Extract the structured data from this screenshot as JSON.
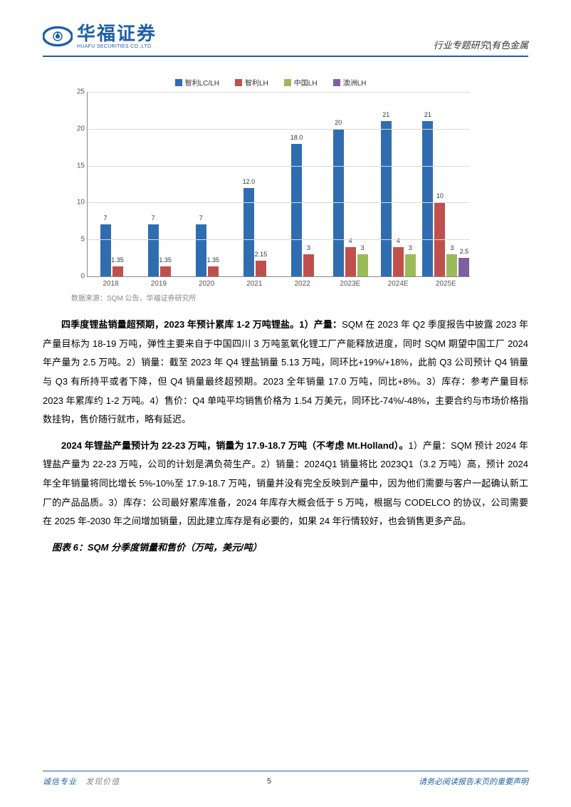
{
  "header": {
    "logo_cn": "华福证券",
    "logo_en": "HUAFU SECURITIES CO.,LTD.",
    "right": "行业专题研究|有色金属"
  },
  "chart": {
    "type": "bar",
    "ylim": [
      0,
      25
    ],
    "ytick_step": 5,
    "grid_color": "#d9d9d9",
    "axis_color": "#888888",
    "background_color": "#ffffff",
    "label_fontsize": 10,
    "legend": [
      {
        "label": "智利LC/LH",
        "color": "#2f6db0"
      },
      {
        "label": "智利LH",
        "color": "#c0504d"
      },
      {
        "label": "中国LH",
        "color": "#9bbb59"
      },
      {
        "label": "澳洲LH",
        "color": "#7e60a2"
      }
    ],
    "categories": [
      "2018",
      "2019",
      "2020",
      "2021",
      "2022",
      "2023E",
      "2024E",
      "2025E"
    ],
    "series": [
      {
        "name": "智利LC/LH",
        "color": "#2f6db0",
        "values": [
          7,
          7,
          7,
          12.0,
          18.0,
          20,
          21,
          21
        ]
      },
      {
        "name": "智利LH",
        "color": "#c0504d",
        "values": [
          1.35,
          1.35,
          1.35,
          2.15,
          3,
          4,
          4,
          10
        ]
      },
      {
        "name": "中国LH",
        "color": "#9bbb59",
        "values": [
          null,
          null,
          null,
          null,
          null,
          3,
          3,
          3
        ]
      },
      {
        "name": "澳洲LH",
        "color": "#7e60a2",
        "values": [
          null,
          null,
          null,
          null,
          null,
          null,
          null,
          2.5
        ]
      }
    ],
    "bar_labels": {
      "0": [
        "7",
        "1.35"
      ],
      "1": [
        "7",
        "1.35"
      ],
      "2": [
        "7",
        "1.35"
      ],
      "3": [
        "12.0",
        "2.15"
      ],
      "4": [
        "18.0",
        "3"
      ],
      "5": [
        "20",
        "4",
        "3"
      ],
      "6": [
        "21",
        "4",
        "3"
      ],
      "7": [
        "21",
        "10",
        "3",
        "2.5"
      ]
    }
  },
  "source": "数据来源：SQM 公告，华福证券研究所",
  "paragraphs": {
    "p1_bold": "四季度锂盐销量超预期，2023 年预计累库 1-2 万吨锂盐。1）产量：",
    "p1_rest": "SQM 在 2023 年 Q2 季度报告中披露 2023 年产量目标为 18-19 万吨，弹性主要来自于中国四川 3 万吨氢氧化锂工厂产能释放进度，同时 SQM 期望中国工厂 2024 年产量为 2.5 万吨。2）销量：截至 2023 年 Q4 锂盐销量 5.13 万吨，同环比+19%/+18%，此前 Q3 公司预计 Q4 销量与 Q3 有所持平或者下降，但 Q4 销量最终超预期。2023 全年销量 17.0 万吨，同比+8%。3）库存：参考产量目标 2023 年累库约 1-2 万吨。4）售价：Q4 单吨平均销售价格为 1.54 万美元，同环比-74%/-48%，主要合约与市场价格指数挂钩，售价随行就市，略有延迟。",
    "p2_bold": "2024 年锂盐产量预计为 22-23 万吨，销量为 17.9-18.7 万吨（不考虑 Mt.Holland）。",
    "p2_rest": "1）产量：SQM 预计 2024 年锂盐产量为 22-23 万吨，公司的计划是满负荷生产。2）销量：2024Q1 销量将比 2023Q1（3.2 万吨）高，预计 2024 年全年销量将同比增长 5%-10%至 17.9-18.7 万吨，销量并没有完全反映到产量中，因为他们需要与客户一起确认新工厂的产品品质。3）库存：公司最好累库准备，2024 年库存大概会低于 5 万吨，根据与 CODELCO 的协议，公司需要在 2025 年-2030 年之间增加销量，因此建立库存是有必要的，如果 24 年行情较好，也会销售更多产品。"
  },
  "caption": "图表 6：SQM 分季度销量和售价（万吨，美元/吨）",
  "footer": {
    "left_a": "诚信专业",
    "left_b": "发现价值",
    "page": "5",
    "right": "请务必阅读报告末页的重要声明"
  }
}
